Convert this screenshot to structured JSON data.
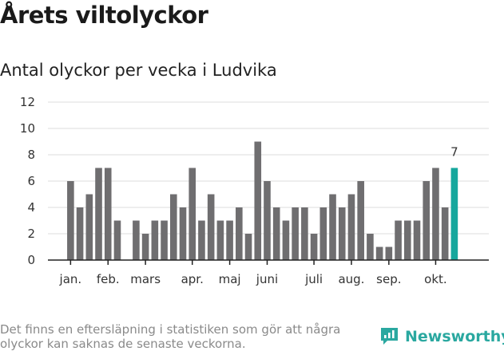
{
  "title": "Årets viltolyckor",
  "subtitle": "Antal olyckor per vecka i Ludvika",
  "footnote": "Det finns en eftersläpning i statistiken som gör att några olyckor kan saknas de senaste veckorna.",
  "brand": {
    "name": "Newsworthy",
    "color": "#2aa8a0",
    "icon": "newsworthy-logo-icon"
  },
  "colors": {
    "bar": "#6f6e70",
    "highlight": "#16a79d",
    "grid": "#dddddd",
    "axis": "#222222"
  },
  "chart_data": {
    "type": "bar",
    "title": "Antal olyckor per vecka i Ludvika",
    "xlabel": "",
    "ylabel": "",
    "ylim": [
      0,
      12
    ],
    "yticks": [
      0,
      2,
      4,
      6,
      8,
      10,
      12
    ],
    "grid": true,
    "x": [
      1,
      2,
      3,
      4,
      5,
      6,
      7,
      8,
      9,
      10,
      11,
      12,
      13,
      14,
      15,
      16,
      17,
      18,
      19,
      20,
      21,
      22,
      23,
      24,
      25,
      26,
      27,
      28,
      29,
      30,
      31,
      32,
      33,
      34,
      35,
      36,
      37,
      38,
      39,
      40,
      41,
      42
    ],
    "values": [
      6,
      4,
      5,
      7,
      7,
      3,
      0,
      3,
      2,
      3,
      3,
      5,
      4,
      7,
      3,
      5,
      3,
      3,
      4,
      2,
      9,
      6,
      4,
      3,
      4,
      4,
      2,
      4,
      5,
      4,
      5,
      6,
      2,
      1,
      1,
      3,
      3,
      3,
      6,
      7,
      4,
      7
    ],
    "highlight_index": 41,
    "highlight_label": "7",
    "month_ticks": [
      {
        "label": "jan.",
        "week": 1
      },
      {
        "label": "feb.",
        "week": 5
      },
      {
        "label": "mars",
        "week": 9
      },
      {
        "label": "apr.",
        "week": 14
      },
      {
        "label": "maj",
        "week": 18
      },
      {
        "label": "juni",
        "week": 22
      },
      {
        "label": "juli",
        "week": 27
      },
      {
        "label": "aug.",
        "week": 31
      },
      {
        "label": "sep.",
        "week": 35
      },
      {
        "label": "okt.",
        "week": 40
      }
    ]
  }
}
